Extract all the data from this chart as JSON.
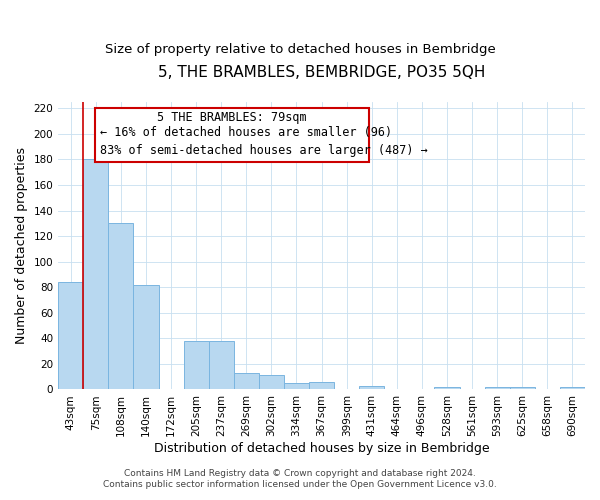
{
  "title": "5, THE BRAMBLES, BEMBRIDGE, PO35 5QH",
  "subtitle": "Size of property relative to detached houses in Bembridge",
  "xlabel": "Distribution of detached houses by size in Bembridge",
  "ylabel": "Number of detached properties",
  "bar_labels": [
    "43sqm",
    "75sqm",
    "108sqm",
    "140sqm",
    "172sqm",
    "205sqm",
    "237sqm",
    "269sqm",
    "302sqm",
    "334sqm",
    "367sqm",
    "399sqm",
    "431sqm",
    "464sqm",
    "496sqm",
    "528sqm",
    "561sqm",
    "593sqm",
    "625sqm",
    "658sqm",
    "690sqm"
  ],
  "bar_values": [
    84,
    180,
    130,
    82,
    0,
    38,
    38,
    13,
    11,
    5,
    6,
    0,
    3,
    0,
    0,
    2,
    0,
    2,
    2,
    0,
    2
  ],
  "bar_color": "#b8d8f0",
  "bar_edge_color": "#7ab5e0",
  "highlight_color": "#cc0000",
  "annotation_title": "5 THE BRAMBLES: 79sqm",
  "annotation_line1": "← 16% of detached houses are smaller (96)",
  "annotation_line2": "83% of semi-detached houses are larger (487) →",
  "footer_line1": "Contains HM Land Registry data © Crown copyright and database right 2024.",
  "footer_line2": "Contains public sector information licensed under the Open Government Licence v3.0.",
  "ylim": [
    0,
    225
  ],
  "yticks": [
    0,
    20,
    40,
    60,
    80,
    100,
    120,
    140,
    160,
    180,
    200,
    220
  ],
  "title_fontsize": 11,
  "subtitle_fontsize": 9.5,
  "axis_label_fontsize": 9,
  "tick_fontsize": 7.5,
  "annotation_fontsize": 8.5,
  "footer_fontsize": 6.5
}
